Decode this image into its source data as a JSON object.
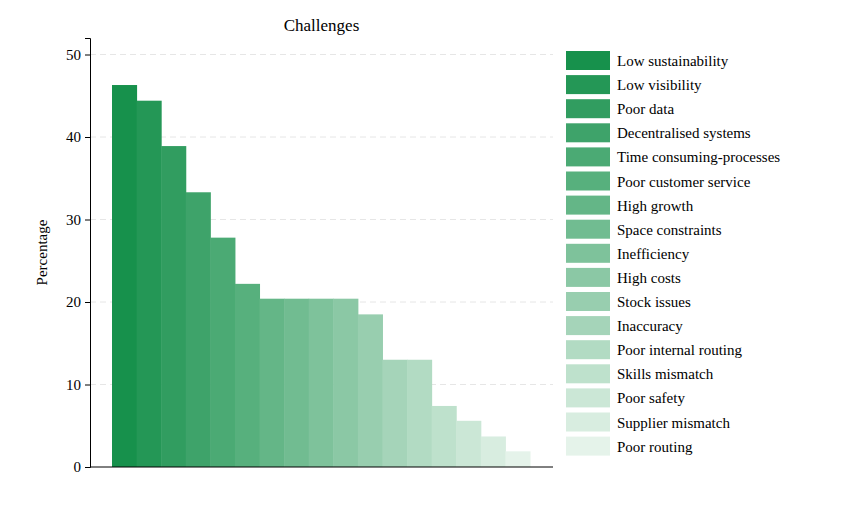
{
  "chart_data": {
    "type": "bar",
    "title": "Challenges",
    "y_label": "Percentage",
    "categories": [
      "Low sustainability",
      "Low visibility",
      "Poor data",
      "Decentralised systems",
      "Time consuming-processes",
      "Poor customer service",
      "High growth",
      "Space constraints",
      "Inefficiency",
      "High costs",
      "Stock issues",
      "Inaccuracy",
      "Poor internal routing",
      "Skills mismatch",
      "Poor safety",
      "Supplier mismatch",
      "Poor routing"
    ],
    "values": [
      46.3,
      44.4,
      38.9,
      33.3,
      27.8,
      22.2,
      20.4,
      20.4,
      20.4,
      20.4,
      18.5,
      13.0,
      13.0,
      7.4,
      5.6,
      3.7,
      1.9
    ],
    "colors": [
      "#17914c",
      "#249756",
      "#319d60",
      "#3ea36a",
      "#4baa74",
      "#57b07d",
      "#64b687",
      "#71bc91",
      "#7ec29b",
      "#8bc8a5",
      "#98ceaf",
      "#a5d4b9",
      "#b2dbc3",
      "#bee1cc",
      "#cbe7d6",
      "#d8ede0",
      "#e5f3ea"
    ],
    "ylim": [
      0,
      52
    ],
    "yticks": [
      0,
      10,
      20,
      30,
      40,
      50
    ],
    "grid": true,
    "legend": "right",
    "tick_labels": "y"
  }
}
